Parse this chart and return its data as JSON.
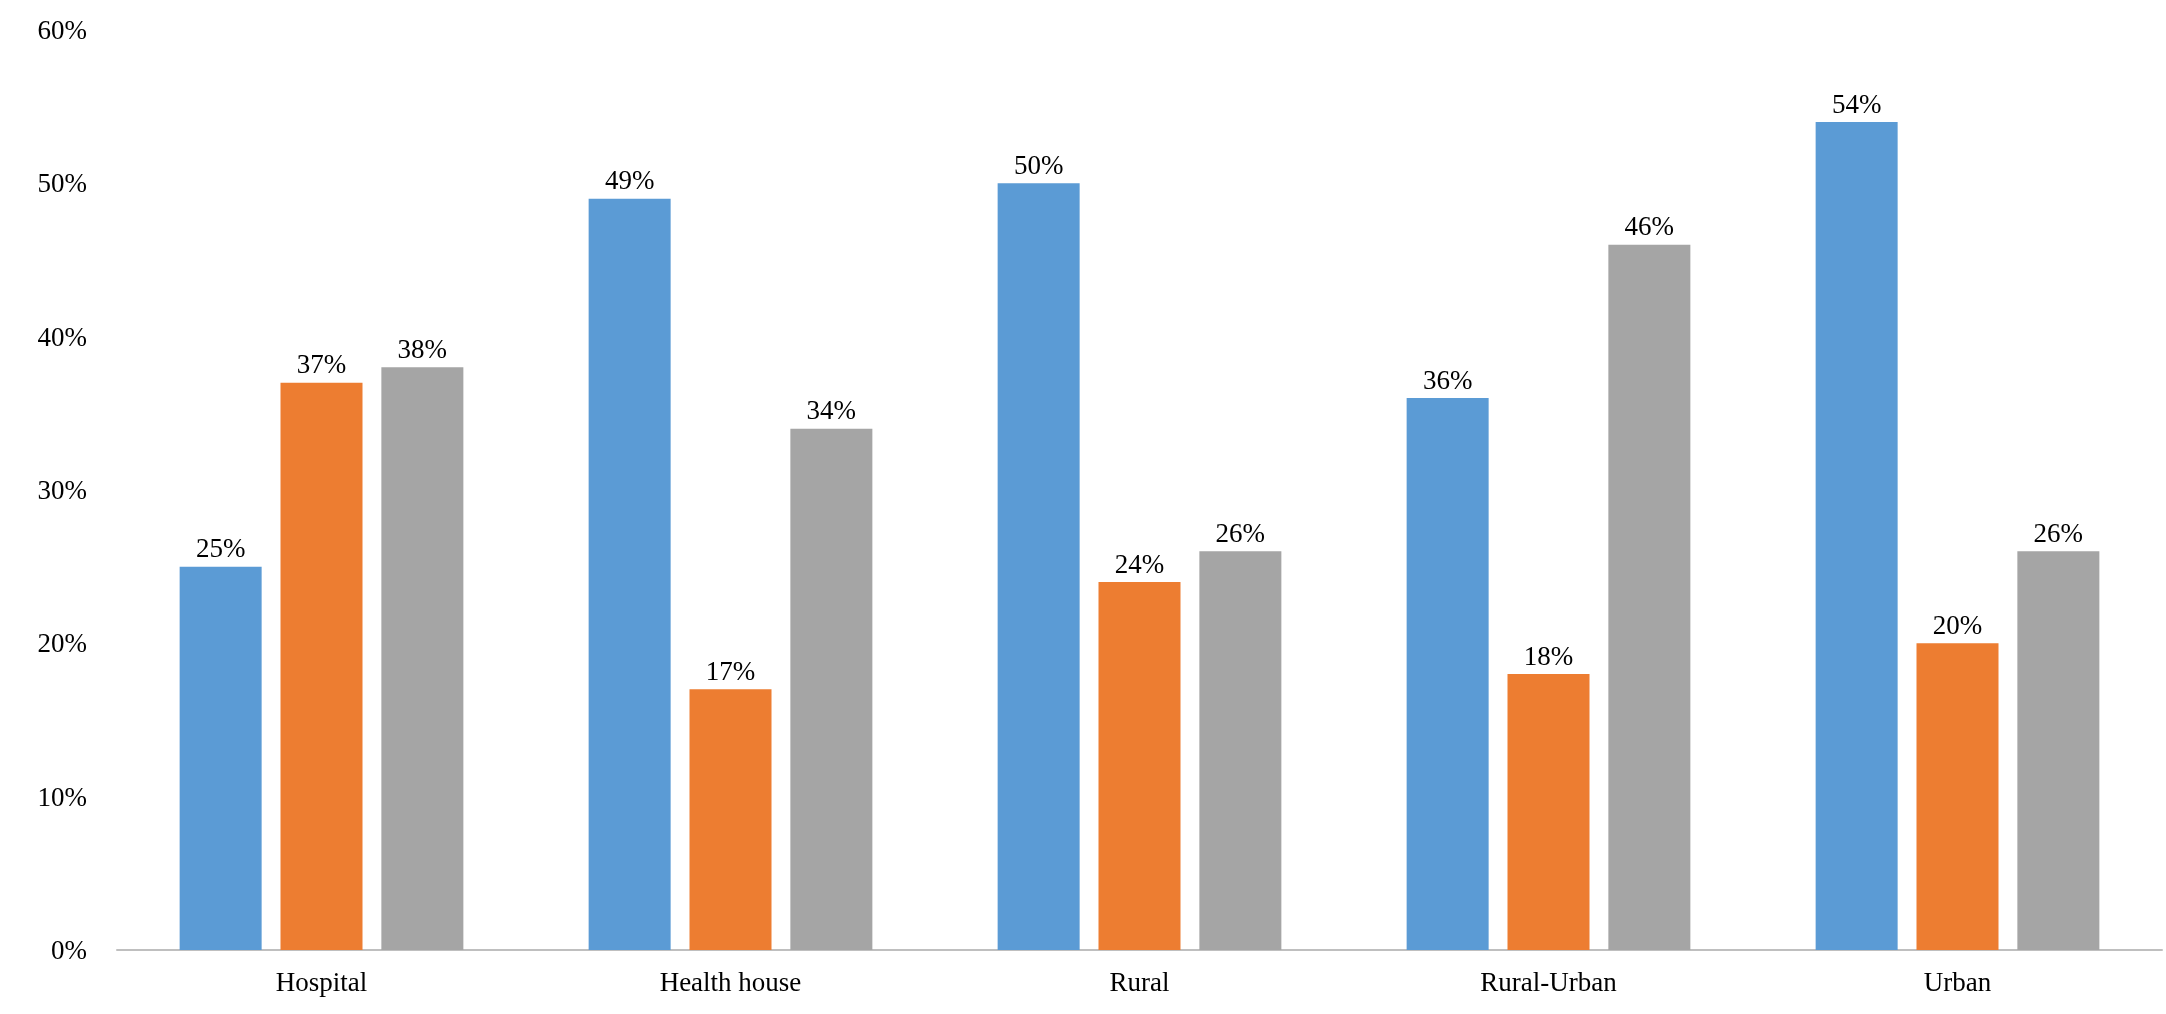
{
  "chart_data": {
    "type": "bar",
    "categories": [
      "Hospital",
      "Health house",
      "Rural",
      "Rural-Urban",
      "Urban"
    ],
    "series": [
      {
        "color": "#5b9bd5",
        "values": [
          25,
          49,
          50,
          36,
          54
        ],
        "value_labels": [
          "25%",
          "49%",
          "50%",
          "36%",
          "54%"
        ]
      },
      {
        "color": "#ed7d31",
        "values": [
          37,
          17,
          24,
          18,
          20
        ],
        "value_labels": [
          "37%",
          "17%",
          "24%",
          "18%",
          "20%"
        ]
      },
      {
        "color": "#a5a5a5",
        "values": [
          38,
          34,
          26,
          46,
          26
        ],
        "value_labels": [
          "38%",
          "34%",
          "26%",
          "46%",
          "26%"
        ]
      }
    ],
    "ylim": [
      0,
      60
    ],
    "yticks": [
      {
        "value": 0,
        "label": "0%"
      },
      {
        "value": 10,
        "label": "10%"
      },
      {
        "value": 20,
        "label": "20%"
      },
      {
        "value": 30,
        "label": "30%"
      },
      {
        "value": 40,
        "label": "40%"
      },
      {
        "value": 50,
        "label": "50%"
      },
      {
        "value": 60,
        "label": "60%"
      }
    ],
    "grid": false
  }
}
